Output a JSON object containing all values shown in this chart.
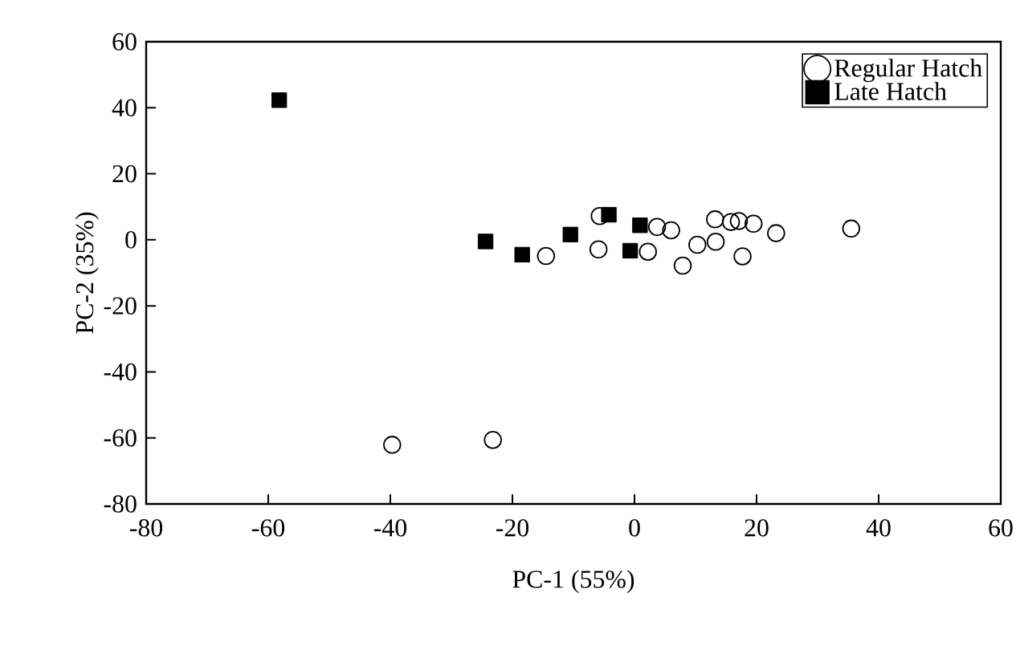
{
  "chart_data": {
    "type": "scatter",
    "xlabel": "PC-1 (55%)",
    "ylabel": "PC-2 (35%)",
    "xlim": [
      -80,
      60
    ],
    "ylim": [
      -80,
      60
    ],
    "xticks": [
      -80,
      -60,
      -40,
      -20,
      0,
      20,
      40,
      60
    ],
    "yticks": [
      -80,
      -60,
      -40,
      -20,
      0,
      20,
      40,
      60
    ],
    "grid": false,
    "legend": "top right",
    "series": [
      {
        "name": "Regular Hatch",
        "color": "#000000",
        "marker": "circle",
        "x": [
          -39.7,
          -23.2,
          -14.5,
          -5.9,
          -5.7,
          2.2,
          3.7,
          6.0,
          7.9,
          10.3,
          13.2,
          13.3,
          15.8,
          17.1,
          19.5,
          17.7,
          23.2,
          35.5
        ],
        "values": [
          -62.1,
          -60.6,
          -4.9,
          -2.9,
          7.2,
          -3.6,
          3.9,
          2.9,
          -7.8,
          -1.5,
          6.2,
          -0.6,
          5.4,
          5.7,
          4.9,
          -5.0,
          2.0,
          3.4
        ]
      },
      {
        "name": "Late Hatch",
        "color": "#000000",
        "marker": "square",
        "x": [
          -58.2,
          -24.4,
          -18.4,
          -10.5,
          -4.2,
          0.9,
          -0.7
        ],
        "values": [
          42.3,
          -0.5,
          -4.5,
          1.6,
          7.6,
          4.4,
          -3.3
        ]
      }
    ]
  }
}
